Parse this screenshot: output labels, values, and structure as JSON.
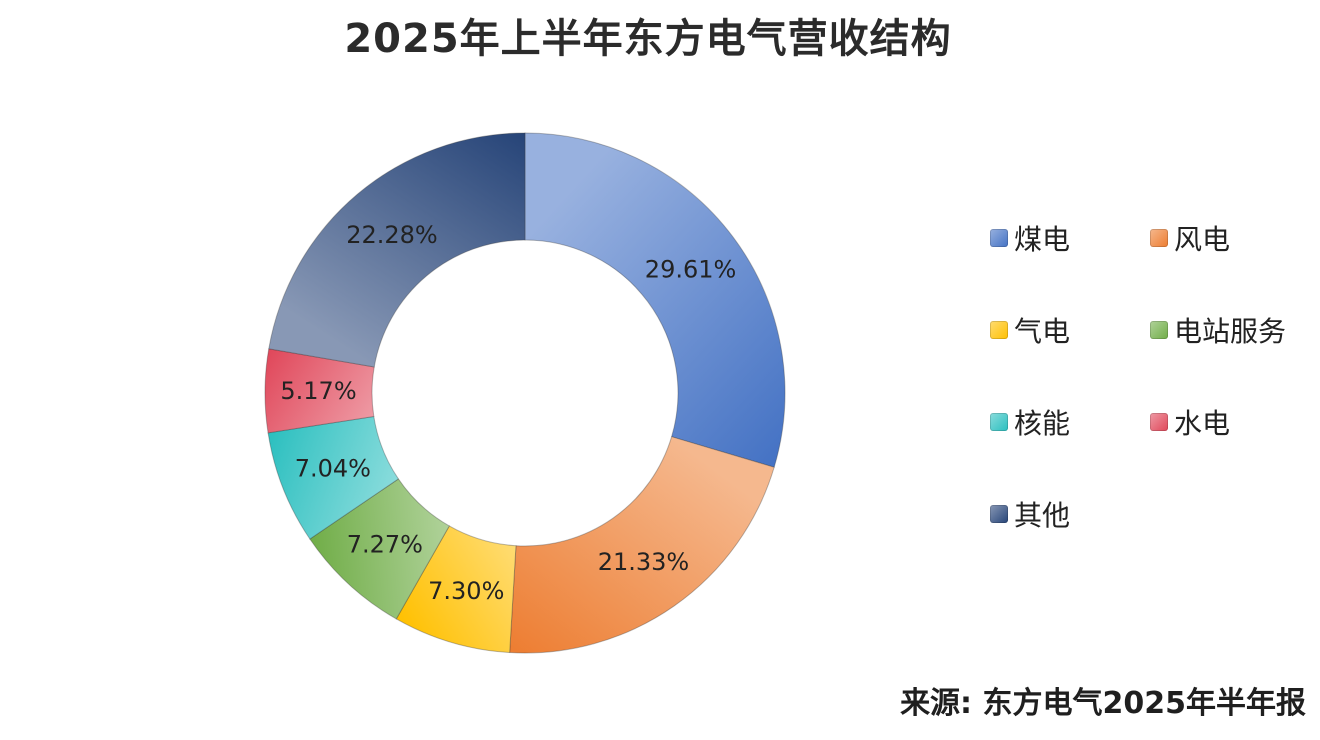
{
  "title": "2025年上半年东方电气营收结构",
  "source_note": "来源: 东方电气2025年半年报",
  "chart_data": {
    "type": "pie",
    "subtype": "donut",
    "title": "2025年上半年东方电气营收结构",
    "unit": "%",
    "slices": [
      {
        "name": "煤电",
        "value": 29.61,
        "label": "29.61%",
        "color": "#4472C4"
      },
      {
        "name": "风电",
        "value": 21.33,
        "label": "21.33%",
        "color": "#ED7D31"
      },
      {
        "name": "气电",
        "value": 7.3,
        "label": "7.30%",
        "color": "#FFC000"
      },
      {
        "name": "电站服务",
        "value": 7.27,
        "label": "7.27%",
        "color": "#70AD47"
      },
      {
        "name": "核能",
        "value": 7.04,
        "label": "7.04%",
        "color": "#2BBFBF"
      },
      {
        "name": "水电",
        "value": 5.17,
        "label": "5.17%",
        "color": "#E0475A"
      },
      {
        "name": "其他",
        "value": 22.28,
        "label": "22.28%",
        "color": "#264478"
      }
    ],
    "legend": {
      "placement": "right",
      "entries": [
        "煤电",
        "风电",
        "气电",
        "电站服务",
        "核能",
        "水电",
        "其他"
      ]
    }
  }
}
